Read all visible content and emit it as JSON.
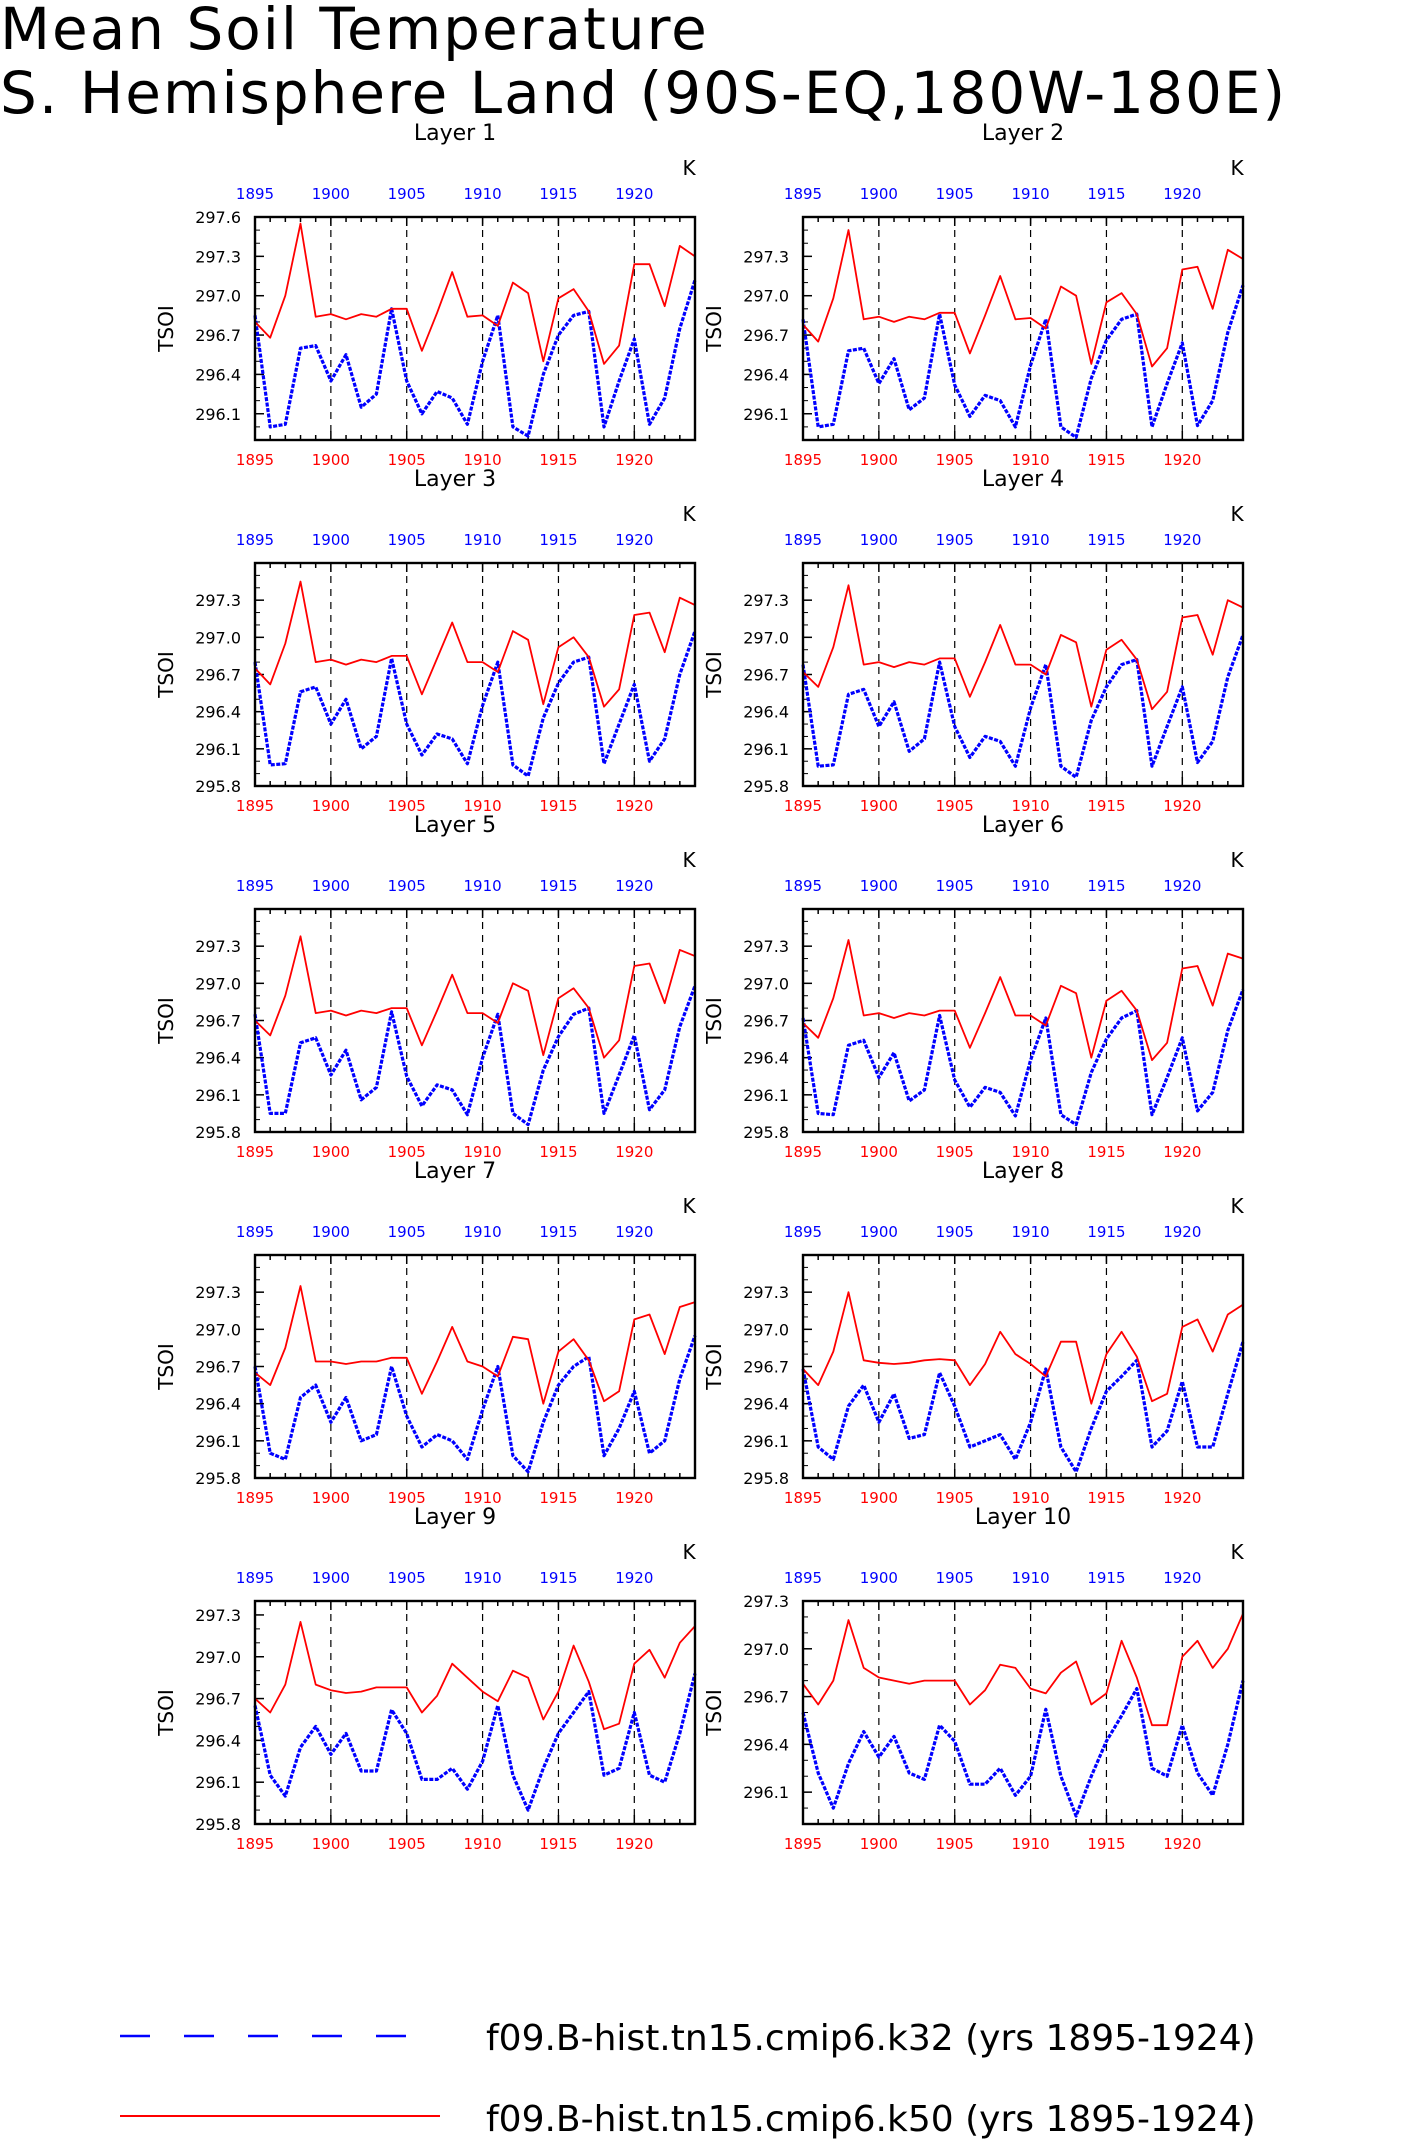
{
  "figure": {
    "title_line1": "Mean Soil Temperature",
    "title_line2": "S. Hemisphere Land (90S-EQ,180W-180E)"
  },
  "colors": {
    "k32": "#0000ff",
    "k50": "#ff0000",
    "axes": "#000000"
  },
  "legend": [
    {
      "label": "f09.B-hist.tn15.cmip6.k32 (yrs 1895-1924)",
      "color": "#0000ff",
      "style": "dashed"
    },
    {
      "label": "f09.B-hist.tn15.cmip6.k50 (yrs 1895-1924)",
      "color": "#ff0000",
      "style": "solid"
    }
  ],
  "chart_data": [
    {
      "type": "line",
      "title": "Layer 1",
      "ylabel": "TSOI",
      "unit_label": "K",
      "xlim": [
        1895,
        1924
      ],
      "ylim": [
        295.9,
        297.6
      ],
      "x_ticks": [
        1895,
        1900,
        1905,
        1910,
        1915,
        1920
      ],
      "y_ticks": [
        296.1,
        296.4,
        296.7,
        297.0,
        297.3,
        297.6
      ],
      "series": [
        {
          "name": "f09.B-hist.tn15.cmip6.k32",
          "color": "#0000ff",
          "values": [
            296.85,
            296.0,
            296.02,
            296.6,
            296.62,
            296.35,
            296.55,
            296.15,
            296.25,
            296.9,
            296.35,
            296.1,
            296.27,
            296.22,
            296.02,
            296.5,
            296.85,
            296.0,
            295.93,
            296.4,
            296.7,
            296.85,
            296.88,
            296.0,
            296.35,
            296.67,
            296.02,
            296.22,
            296.75,
            297.12
          ]
        },
        {
          "name": "f09.B-hist.tn15.cmip6.k50",
          "color": "#ff0000",
          "values": [
            296.8,
            296.68,
            297.0,
            297.55,
            296.84,
            296.86,
            296.82,
            296.86,
            296.84,
            296.9,
            296.9,
            296.58,
            296.87,
            297.18,
            296.84,
            296.85,
            296.77,
            297.1,
            297.02,
            296.5,
            296.98,
            297.05,
            296.88,
            296.48,
            296.62,
            297.24,
            297.24,
            296.92,
            297.38,
            297.3
          ]
        }
      ]
    },
    {
      "type": "line",
      "title": "Layer 2",
      "ylabel": "TSOI",
      "unit_label": "K",
      "xlim": [
        1895,
        1924
      ],
      "ylim": [
        295.9,
        297.6
      ],
      "x_ticks": [
        1895,
        1900,
        1905,
        1910,
        1915,
        1920
      ],
      "y_ticks": [
        296.1,
        296.4,
        296.7,
        297.0,
        297.3
      ],
      "series": [
        {
          "name": "f09.B-hist.tn15.cmip6.k32",
          "color": "#0000ff",
          "values": [
            296.82,
            296.0,
            296.02,
            296.58,
            296.6,
            296.33,
            296.52,
            296.13,
            296.22,
            296.86,
            296.32,
            296.08,
            296.24,
            296.2,
            296.0,
            296.47,
            296.82,
            296.0,
            295.92,
            296.37,
            296.66,
            296.82,
            296.86,
            296.0,
            296.33,
            296.64,
            296.01,
            296.2,
            296.72,
            297.08
          ]
        },
        {
          "name": "f09.B-hist.tn15.cmip6.k50",
          "color": "#ff0000",
          "values": [
            296.78,
            296.65,
            296.98,
            297.5,
            296.82,
            296.84,
            296.8,
            296.84,
            296.82,
            296.87,
            296.87,
            296.56,
            296.85,
            297.15,
            296.82,
            296.83,
            296.75,
            297.07,
            297.0,
            296.48,
            296.95,
            297.02,
            296.86,
            296.46,
            296.6,
            297.2,
            297.22,
            296.9,
            297.35,
            297.28
          ]
        }
      ]
    },
    {
      "type": "line",
      "title": "Layer 3",
      "ylabel": "TSOI",
      "unit_label": "K",
      "xlim": [
        1895,
        1924
      ],
      "ylim": [
        295.8,
        297.6
      ],
      "x_ticks": [
        1895,
        1900,
        1905,
        1910,
        1915,
        1920
      ],
      "y_ticks": [
        295.8,
        296.1,
        296.4,
        296.7,
        297.0,
        297.3
      ],
      "series": [
        {
          "name": "f09.B-hist.tn15.cmip6.k32",
          "color": "#0000ff",
          "values": [
            296.8,
            295.97,
            295.98,
            296.56,
            296.6,
            296.3,
            296.5,
            296.1,
            296.2,
            296.83,
            296.3,
            296.05,
            296.22,
            296.18,
            295.98,
            296.45,
            296.8,
            295.97,
            295.88,
            296.35,
            296.63,
            296.8,
            296.84,
            295.98,
            296.3,
            296.62,
            296.0,
            296.18,
            296.7,
            297.05
          ]
        },
        {
          "name": "f09.B-hist.tn15.cmip6.k50",
          "color": "#ff0000",
          "values": [
            296.75,
            296.62,
            296.95,
            297.45,
            296.8,
            296.82,
            296.78,
            296.82,
            296.8,
            296.85,
            296.85,
            296.54,
            296.83,
            297.12,
            296.8,
            296.8,
            296.72,
            297.05,
            296.98,
            296.46,
            296.92,
            297.0,
            296.84,
            296.44,
            296.58,
            297.18,
            297.2,
            296.88,
            297.32,
            297.26
          ]
        }
      ]
    },
    {
      "type": "line",
      "title": "Layer 4",
      "ylabel": "TSOI",
      "unit_label": "K",
      "xlim": [
        1895,
        1924
      ],
      "ylim": [
        295.8,
        297.6
      ],
      "x_ticks": [
        1895,
        1900,
        1905,
        1910,
        1915,
        1920
      ],
      "y_ticks": [
        295.8,
        296.1,
        296.4,
        296.7,
        297.0,
        297.3
      ],
      "series": [
        {
          "name": "f09.B-hist.tn15.cmip6.k32",
          "color": "#0000ff",
          "values": [
            296.78,
            295.96,
            295.97,
            296.54,
            296.58,
            296.28,
            296.48,
            296.08,
            296.18,
            296.8,
            296.28,
            296.03,
            296.2,
            296.16,
            295.96,
            296.43,
            296.78,
            295.96,
            295.87,
            296.33,
            296.6,
            296.78,
            296.82,
            295.96,
            296.28,
            296.6,
            295.99,
            296.16,
            296.68,
            297.02
          ]
        },
        {
          "name": "f09.B-hist.tn15.cmip6.k50",
          "color": "#ff0000",
          "values": [
            296.72,
            296.6,
            296.92,
            297.42,
            296.78,
            296.8,
            296.76,
            296.8,
            296.78,
            296.83,
            296.83,
            296.52,
            296.8,
            297.1,
            296.78,
            296.78,
            296.7,
            297.02,
            296.96,
            296.44,
            296.9,
            296.98,
            296.82,
            296.42,
            296.56,
            297.16,
            297.18,
            296.86,
            297.3,
            297.24
          ]
        }
      ]
    },
    {
      "type": "line",
      "title": "Layer 5",
      "ylabel": "TSOI",
      "unit_label": "K",
      "xlim": [
        1895,
        1924
      ],
      "ylim": [
        295.8,
        297.6
      ],
      "x_ticks": [
        1895,
        1900,
        1905,
        1910,
        1915,
        1920
      ],
      "y_ticks": [
        295.8,
        296.1,
        296.4,
        296.7,
        297.0,
        297.3
      ],
      "series": [
        {
          "name": "f09.B-hist.tn15.cmip6.k32",
          "color": "#0000ff",
          "values": [
            296.75,
            295.95,
            295.95,
            296.52,
            296.56,
            296.26,
            296.46,
            296.06,
            296.16,
            296.77,
            296.25,
            296.01,
            296.18,
            296.14,
            295.94,
            296.4,
            296.75,
            295.95,
            295.86,
            296.3,
            296.57,
            296.75,
            296.8,
            295.95,
            296.26,
            296.58,
            295.98,
            296.14,
            296.65,
            296.98
          ]
        },
        {
          "name": "f09.B-hist.tn15.cmip6.k50",
          "color": "#ff0000",
          "values": [
            296.7,
            296.58,
            296.9,
            297.38,
            296.76,
            296.78,
            296.74,
            296.78,
            296.76,
            296.8,
            296.8,
            296.5,
            296.78,
            297.07,
            296.76,
            296.76,
            296.68,
            297.0,
            296.94,
            296.42,
            296.88,
            296.96,
            296.8,
            296.4,
            296.54,
            297.14,
            297.16,
            296.84,
            297.27,
            297.22
          ]
        }
      ]
    },
    {
      "type": "line",
      "title": "Layer 6",
      "ylabel": "TSOI",
      "unit_label": "K",
      "xlim": [
        1895,
        1924
      ],
      "ylim": [
        295.8,
        297.6
      ],
      "x_ticks": [
        1895,
        1900,
        1905,
        1910,
        1915,
        1920
      ],
      "y_ticks": [
        295.8,
        296.1,
        296.4,
        296.7,
        297.0,
        297.3
      ],
      "series": [
        {
          "name": "f09.B-hist.tn15.cmip6.k32",
          "color": "#0000ff",
          "values": [
            296.72,
            295.95,
            295.94,
            296.5,
            296.54,
            296.24,
            296.44,
            296.05,
            296.14,
            296.74,
            296.22,
            296.0,
            296.16,
            296.12,
            295.93,
            296.38,
            296.72,
            295.94,
            295.86,
            296.28,
            296.55,
            296.72,
            296.78,
            295.94,
            296.24,
            296.56,
            295.97,
            296.12,
            296.62,
            296.95
          ]
        },
        {
          "name": "f09.B-hist.tn15.cmip6.k50",
          "color": "#ff0000",
          "values": [
            296.68,
            296.56,
            296.88,
            297.35,
            296.74,
            296.76,
            296.72,
            296.76,
            296.74,
            296.78,
            296.78,
            296.48,
            296.76,
            297.05,
            296.74,
            296.74,
            296.66,
            296.98,
            296.92,
            296.4,
            296.86,
            296.94,
            296.78,
            296.38,
            296.52,
            297.12,
            297.14,
            296.82,
            297.24,
            297.2
          ]
        }
      ]
    },
    {
      "type": "line",
      "title": "Layer 7",
      "ylabel": "TSOI",
      "unit_label": "K",
      "xlim": [
        1895,
        1924
      ],
      "ylim": [
        295.8,
        297.6
      ],
      "x_ticks": [
        1895,
        1900,
        1905,
        1910,
        1915,
        1920
      ],
      "y_ticks": [
        295.8,
        296.1,
        296.4,
        296.7,
        297.0,
        297.3
      ],
      "series": [
        {
          "name": "f09.B-hist.tn15.cmip6.k32",
          "color": "#0000ff",
          "values": [
            296.7,
            296.0,
            295.95,
            296.45,
            296.55,
            296.25,
            296.45,
            296.1,
            296.15,
            296.7,
            296.3,
            296.05,
            296.15,
            296.1,
            295.95,
            296.35,
            296.7,
            295.98,
            295.85,
            296.25,
            296.55,
            296.7,
            296.78,
            295.98,
            296.2,
            296.5,
            296.0,
            296.1,
            296.6,
            296.95
          ]
        },
        {
          "name": "f09.B-hist.tn15.cmip6.k50",
          "color": "#ff0000",
          "values": [
            296.65,
            296.55,
            296.85,
            297.35,
            296.74,
            296.74,
            296.72,
            296.74,
            296.74,
            296.77,
            296.77,
            296.48,
            296.74,
            297.02,
            296.74,
            296.7,
            296.62,
            296.94,
            296.92,
            296.4,
            296.82,
            296.92,
            296.75,
            296.42,
            296.5,
            297.08,
            297.12,
            296.8,
            297.18,
            297.22
          ]
        }
      ]
    },
    {
      "type": "line",
      "title": "Layer 8",
      "ylabel": "TSOI",
      "unit_label": "K",
      "xlim": [
        1895,
        1924
      ],
      "ylim": [
        295.8,
        297.6
      ],
      "x_ticks": [
        1895,
        1900,
        1905,
        1910,
        1915,
        1920
      ],
      "y_ticks": [
        295.8,
        296.1,
        296.4,
        296.7,
        297.0,
        297.3
      ],
      "series": [
        {
          "name": "f09.B-hist.tn15.cmip6.k32",
          "color": "#0000ff",
          "values": [
            296.68,
            296.05,
            295.95,
            296.38,
            296.55,
            296.25,
            296.48,
            296.12,
            296.15,
            296.65,
            296.38,
            296.05,
            296.1,
            296.15,
            295.95,
            296.25,
            296.68,
            296.05,
            295.85,
            296.2,
            296.5,
            296.62,
            296.75,
            296.05,
            296.18,
            296.58,
            296.05,
            296.05,
            296.48,
            296.9
          ]
        },
        {
          "name": "f09.B-hist.tn15.cmip6.k50",
          "color": "#ff0000",
          "values": [
            296.68,
            296.55,
            296.82,
            297.3,
            296.75,
            296.73,
            296.72,
            296.73,
            296.75,
            296.76,
            296.75,
            296.55,
            296.72,
            296.98,
            296.8,
            296.72,
            296.62,
            296.9,
            296.9,
            296.4,
            296.8,
            296.98,
            296.78,
            296.42,
            296.48,
            297.02,
            297.08,
            296.82,
            297.12,
            297.2
          ]
        }
      ]
    },
    {
      "type": "line",
      "title": "Layer 9",
      "ylabel": "TSOI",
      "unit_label": "K",
      "xlim": [
        1895,
        1924
      ],
      "ylim": [
        295.8,
        297.4
      ],
      "x_ticks": [
        1895,
        1900,
        1905,
        1910,
        1915,
        1920
      ],
      "y_ticks": [
        295.8,
        296.1,
        296.4,
        296.7,
        297.0,
        297.3
      ],
      "series": [
        {
          "name": "f09.B-hist.tn15.cmip6.k32",
          "color": "#0000ff",
          "values": [
            296.65,
            296.15,
            296.0,
            296.35,
            296.5,
            296.3,
            296.45,
            296.18,
            296.18,
            296.62,
            296.45,
            296.12,
            296.12,
            296.2,
            296.05,
            296.25,
            296.65,
            296.15,
            295.9,
            296.2,
            296.45,
            296.6,
            296.75,
            296.15,
            296.2,
            296.6,
            296.15,
            296.1,
            296.45,
            296.88
          ]
        },
        {
          "name": "f09.B-hist.tn15.cmip6.k50",
          "color": "#ff0000",
          "values": [
            296.7,
            296.6,
            296.8,
            297.25,
            296.8,
            296.76,
            296.74,
            296.75,
            296.78,
            296.78,
            296.78,
            296.6,
            296.72,
            296.95,
            296.85,
            296.75,
            296.68,
            296.9,
            296.85,
            296.55,
            296.75,
            297.08,
            296.82,
            296.48,
            296.52,
            296.95,
            297.05,
            296.85,
            297.1,
            297.22
          ]
        }
      ]
    },
    {
      "type": "line",
      "title": "Layer 10",
      "ylabel": "TSOI",
      "unit_label": "K",
      "xlim": [
        1895,
        1924
      ],
      "ylim": [
        295.9,
        297.3
      ],
      "x_ticks": [
        1895,
        1900,
        1905,
        1910,
        1915,
        1920
      ],
      "y_ticks": [
        296.1,
        296.4,
        296.7,
        297.0,
        297.3
      ],
      "series": [
        {
          "name": "f09.B-hist.tn15.cmip6.k32",
          "color": "#0000ff",
          "values": [
            296.6,
            296.22,
            296.0,
            296.28,
            296.48,
            296.32,
            296.45,
            296.22,
            296.18,
            296.52,
            296.42,
            296.15,
            296.15,
            296.25,
            296.08,
            296.2,
            296.62,
            296.2,
            295.95,
            296.2,
            296.42,
            296.58,
            296.75,
            296.25,
            296.2,
            296.52,
            296.22,
            296.08,
            296.4,
            296.8
          ]
        },
        {
          "name": "f09.B-hist.tn15.cmip6.k50",
          "color": "#ff0000",
          "values": [
            296.78,
            296.65,
            296.8,
            297.18,
            296.88,
            296.82,
            296.8,
            296.78,
            296.8,
            296.8,
            296.8,
            296.65,
            296.74,
            296.9,
            296.88,
            296.75,
            296.72,
            296.85,
            296.92,
            296.65,
            296.72,
            297.05,
            296.82,
            296.52,
            296.52,
            296.95,
            297.05,
            296.88,
            297.0,
            297.22
          ]
        }
      ]
    }
  ]
}
